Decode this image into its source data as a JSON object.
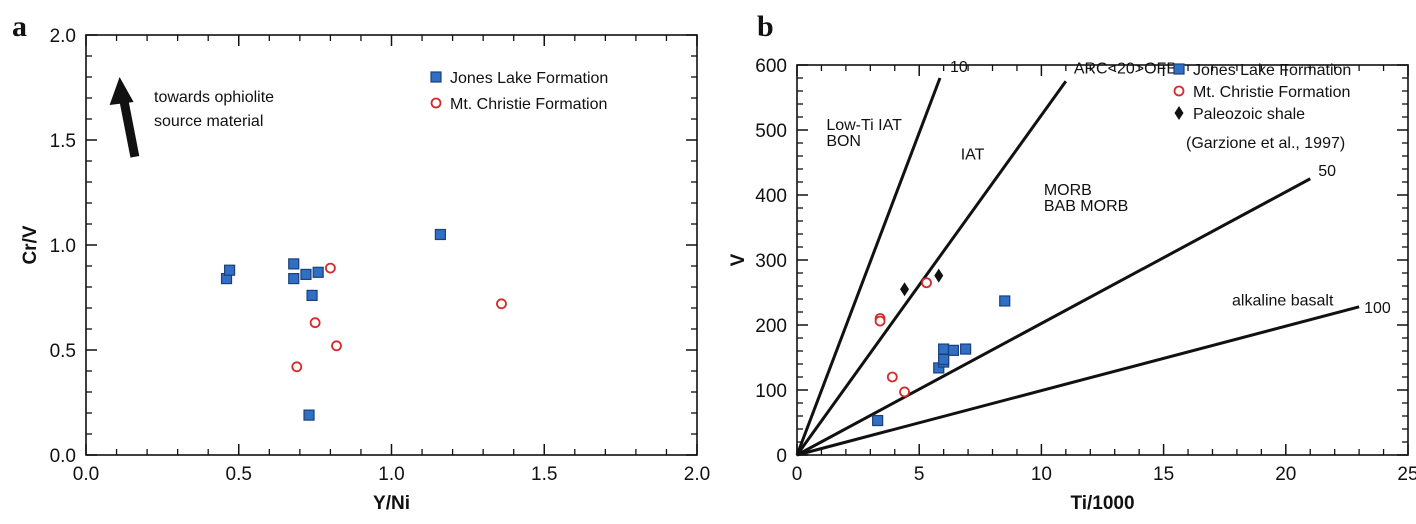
{
  "chart_data": [
    {
      "panel": "a",
      "type": "scatter",
      "xlabel": "Y/Ni",
      "ylabel": "Cr/V",
      "xlim": [
        0.0,
        2.0
      ],
      "ylim": [
        0.0,
        2.0
      ],
      "xticks": [
        "0.0",
        "0.5",
        "1.0",
        "1.5",
        "2.0"
      ],
      "yticks": [
        "0.0",
        "0.5",
        "1.0",
        "1.5",
        "2.0"
      ],
      "legend_position": "top-right",
      "annotation": [
        "towards ophiolite",
        "source material"
      ],
      "series": [
        {
          "name": "Jones Lake Formation",
          "marker": "square",
          "color": "#2f6fc4",
          "points": [
            [
              0.46,
              0.84
            ],
            [
              0.47,
              0.88
            ],
            [
              0.68,
              0.91
            ],
            [
              0.68,
              0.84
            ],
            [
              0.72,
              0.86
            ],
            [
              0.76,
              0.87
            ],
            [
              0.74,
              0.76
            ],
            [
              1.16,
              1.05
            ],
            [
              0.73,
              0.19
            ]
          ]
        },
        {
          "name": "Mt. Christie Formation",
          "marker": "open-circle",
          "color": "#d42a2a",
          "points": [
            [
              0.8,
              0.89
            ],
            [
              0.75,
              0.63
            ],
            [
              0.82,
              0.52
            ],
            [
              0.69,
              0.42
            ],
            [
              1.36,
              0.72
            ]
          ]
        }
      ]
    },
    {
      "panel": "b",
      "type": "scatter",
      "xlabel": "Ti/1000",
      "ylabel": "V",
      "xlim": [
        0,
        25
      ],
      "ylim": [
        0,
        600
      ],
      "xticks": [
        "0",
        "5",
        "10",
        "15",
        "20",
        "25"
      ],
      "yticks": [
        "0",
        "100",
        "200",
        "300",
        "400",
        "500",
        "600"
      ],
      "legend_position": "top-right",
      "legend_note": "(Garzione et al., 1997)",
      "reference_lines": [
        {
          "label": "10",
          "end": [
            5.85,
            580
          ]
        },
        {
          "label": "ARC<20>OFB",
          "end": [
            11.0,
            575
          ]
        },
        {
          "label": "50",
          "end": [
            21.0,
            425
          ]
        },
        {
          "label": "100",
          "end": [
            23.0,
            228
          ]
        }
      ],
      "field_labels": [
        {
          "lines": [
            "Low-Ti IAT",
            "BON"
          ],
          "at": [
            1.2,
            500
          ]
        },
        {
          "lines": [
            "IAT"
          ],
          "at": [
            6.7,
            455
          ]
        },
        {
          "lines": [
            "MORB",
            "BAB MORB"
          ],
          "at": [
            10.1,
            400
          ]
        },
        {
          "lines": [
            "alkaline basalt"
          ],
          "at": [
            17.8,
            230
          ]
        }
      ],
      "series": [
        {
          "name": "Jones Lake Formation",
          "marker": "square",
          "color": "#2f6fc4",
          "points": [
            [
              3.3,
              53
            ],
            [
              5.8,
              134
            ],
            [
              6.0,
              143
            ],
            [
              6.0,
              147
            ],
            [
              6.0,
              163
            ],
            [
              6.4,
              161
            ],
            [
              6.9,
              163
            ],
            [
              8.5,
              237
            ]
          ]
        },
        {
          "name": "Mt. Christie Formation",
          "marker": "open-circle",
          "color": "#d42a2a",
          "points": [
            [
              3.4,
              210
            ],
            [
              3.4,
              206
            ],
            [
              3.9,
              120
            ],
            [
              4.4,
              97
            ],
            [
              5.3,
              265
            ]
          ]
        },
        {
          "name": "Paleozoic shale",
          "marker": "diamond",
          "color": "#111111",
          "points": [
            [
              4.4,
              255
            ],
            [
              5.8,
              276
            ]
          ]
        }
      ]
    }
  ]
}
